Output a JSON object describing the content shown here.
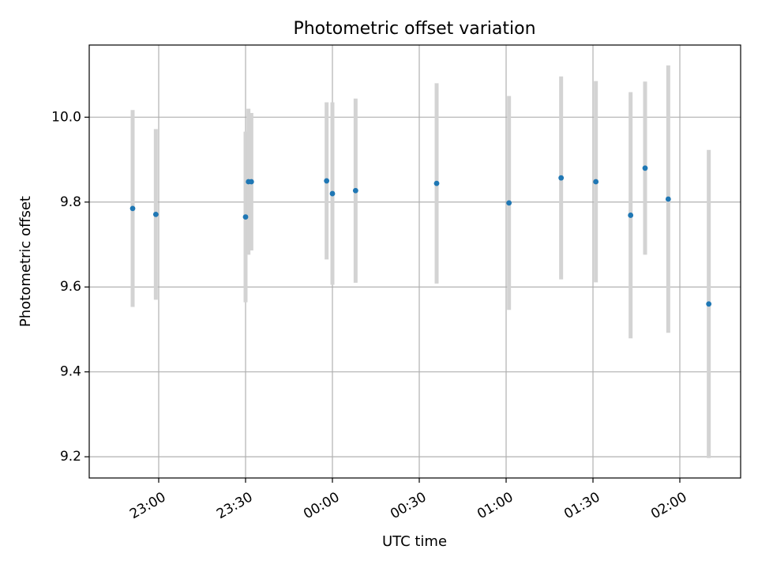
{
  "chart_data": {
    "type": "scatter",
    "title": "Photometric offset variation",
    "xlabel": "UTC time",
    "ylabel": "Photometric offset",
    "x_axis": {
      "kind": "time",
      "range": [
        "22:36",
        "02:21"
      ],
      "ticks": [
        "23:00",
        "23:30",
        "00:00",
        "00:30",
        "01:00",
        "01:30",
        "02:00"
      ],
      "tick_label_rotation": "slanted"
    },
    "y_axis": {
      "range": [
        9.15,
        10.17
      ],
      "ticks": [
        "9.2",
        "9.4",
        "9.6",
        "9.8",
        "10.0"
      ]
    },
    "grid": true,
    "legend": "none",
    "colors": {
      "point": "#1f77b4",
      "errorbar": "#d3d3d3",
      "grid": "#b0b0b0"
    },
    "series": [
      {
        "points": [
          {
            "x": "22:51",
            "y": 9.785,
            "y_low": 9.553,
            "y_high": 10.017
          },
          {
            "x": "22:59",
            "y": 9.771,
            "y_low": 9.57,
            "y_high": 9.972
          },
          {
            "x": "23:30",
            "y": 9.765,
            "y_low": 9.564,
            "y_high": 9.966
          },
          {
            "x": "23:31",
            "y": 9.848,
            "y_low": 9.676,
            "y_high": 10.02
          },
          {
            "x": "23:32",
            "y": 9.848,
            "y_low": 9.686,
            "y_high": 10.01
          },
          {
            "x": "23:58",
            "y": 9.85,
            "y_low": 9.665,
            "y_high": 10.035
          },
          {
            "x": "00:00",
            "y": 9.82,
            "y_low": 9.605,
            "y_high": 10.035
          },
          {
            "x": "00:08",
            "y": 9.827,
            "y_low": 9.61,
            "y_high": 10.044
          },
          {
            "x": "00:36",
            "y": 9.844,
            "y_low": 9.608,
            "y_high": 10.08
          },
          {
            "x": "01:01",
            "y": 9.798,
            "y_low": 9.546,
            "y_high": 10.05
          },
          {
            "x": "01:19",
            "y": 9.857,
            "y_low": 9.618,
            "y_high": 10.096
          },
          {
            "x": "01:31",
            "y": 9.848,
            "y_low": 9.611,
            "y_high": 10.085
          },
          {
            "x": "01:43",
            "y": 9.769,
            "y_low": 9.479,
            "y_high": 10.059
          },
          {
            "x": "01:48",
            "y": 9.88,
            "y_low": 9.676,
            "y_high": 10.084
          },
          {
            "x": "01:56",
            "y": 9.807,
            "y_low": 9.492,
            "y_high": 10.122
          },
          {
            "x": "02:10",
            "y": 9.56,
            "y_low": 9.197,
            "y_high": 9.923
          }
        ]
      }
    ]
  }
}
